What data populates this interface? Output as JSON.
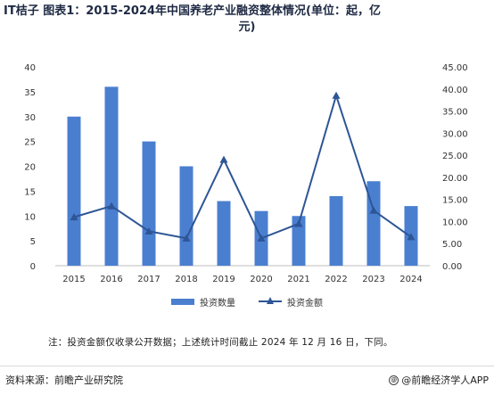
{
  "title_line1": "IT桔子 图表1：2015-2024年中国养老产业融资整体情况(单位：起，亿",
  "title_line2": "元)",
  "note": "注：投资金额仅收录公开数据；上述统计时间截止 2024 年 12 月 16 日，下同。",
  "source": "资料来源：前瞻产业研究院",
  "brand": "@前瞻经济学人APP",
  "brand_icon": "@",
  "chart_data": {
    "type": "bar",
    "categories": [
      "2015",
      "2016",
      "2017",
      "2018",
      "2019",
      "2020",
      "2021",
      "2022",
      "2023",
      "2024"
    ],
    "series": [
      {
        "name": "投资数量",
        "type": "bar",
        "axis": "left",
        "color": "#4a7fd0",
        "values": [
          30,
          36,
          25,
          20,
          13,
          11,
          10,
          14,
          17,
          12
        ]
      },
      {
        "name": "投资金额",
        "type": "line",
        "axis": "right",
        "color": "#2e5596",
        "marker": "triangle",
        "values": [
          11.0,
          13.5,
          7.8,
          6.2,
          24.0,
          6.2,
          9.5,
          38.5,
          12.5,
          6.5
        ]
      }
    ],
    "y_left": {
      "range": [
        0,
        40
      ],
      "ticks": [
        "0",
        "5",
        "10",
        "15",
        "20",
        "25",
        "30",
        "35",
        "40"
      ]
    },
    "y_right": {
      "range": [
        0,
        45
      ],
      "ticks": [
        "0.00",
        "5.00",
        "10.00",
        "15.00",
        "20.00",
        "25.00",
        "30.00",
        "35.00",
        "40.00",
        "45.00"
      ]
    },
    "grid": false,
    "legend_position": "bottom"
  }
}
